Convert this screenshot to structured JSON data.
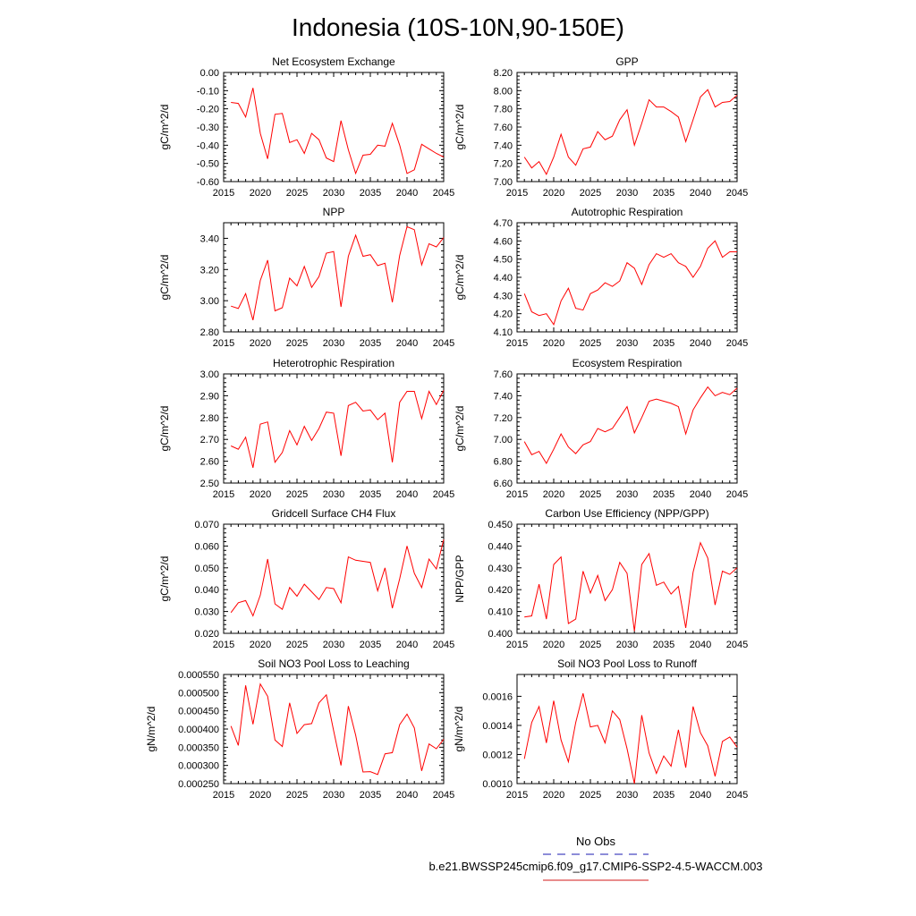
{
  "title": "Indonesia (10S-10N,90-150E)",
  "legend": {
    "obs_label": "No Obs",
    "obs_color": "#6666cc",
    "model_label": "b.e21.BWSSP245cmip6.f09_g17.CMIP6-SSP2-4.5-WACCM.003",
    "model_color": "#e06666"
  },
  "series_color": "#ff0000",
  "chart_data": [
    {
      "type": "line",
      "title": "Net Ecosystem Exchange",
      "ylabel": "gC/m^2/d",
      "xlim": [
        2015,
        2045
      ],
      "ylim": [
        -0.6,
        0.0
      ],
      "xticks": [
        2015,
        2020,
        2025,
        2030,
        2035,
        2040,
        2045
      ],
      "yticks": [
        -0.6,
        -0.5,
        -0.4,
        -0.3,
        -0.2,
        -0.1,
        0.0
      ],
      "ytick_labels": [
        "-0.60",
        "-0.50",
        "-0.40",
        "-0.30",
        "-0.20",
        "-0.10",
        "0.00"
      ],
      "x": [
        2016,
        2017,
        2018,
        2019,
        2020,
        2021,
        2022,
        2023,
        2024,
        2025,
        2026,
        2027,
        2028,
        2029,
        2030,
        2031,
        2032,
        2033,
        2034,
        2035,
        2036,
        2037,
        2038,
        2039,
        2040,
        2041,
        2042,
        2043,
        2044,
        2045
      ],
      "values": [
        -0.165,
        -0.17,
        -0.245,
        -0.085,
        -0.335,
        -0.475,
        -0.23,
        -0.225,
        -0.385,
        -0.37,
        -0.445,
        -0.335,
        -0.37,
        -0.47,
        -0.49,
        -0.265,
        -0.425,
        -0.555,
        -0.455,
        -0.45,
        -0.4,
        -0.405,
        -0.28,
        -0.4,
        -0.555,
        -0.535,
        -0.395,
        -0.42,
        -0.445,
        -0.465
      ]
    },
    {
      "type": "line",
      "title": "GPP",
      "ylabel": "gC/m^2/d",
      "xlim": [
        2015,
        2045
      ],
      "ylim": [
        7.0,
        8.2
      ],
      "xticks": [
        2015,
        2020,
        2025,
        2030,
        2035,
        2040,
        2045
      ],
      "yticks": [
        7.0,
        7.2,
        7.4,
        7.6,
        7.8,
        8.0,
        8.2
      ],
      "ytick_labels": [
        "7.00",
        "7.20",
        "7.40",
        "7.60",
        "7.80",
        "8.00",
        "8.20"
      ],
      "x": [
        2016,
        2017,
        2018,
        2019,
        2020,
        2021,
        2022,
        2023,
        2024,
        2025,
        2026,
        2027,
        2028,
        2029,
        2030,
        2031,
        2032,
        2033,
        2034,
        2035,
        2036,
        2037,
        2038,
        2039,
        2040,
        2041,
        2042,
        2043,
        2044,
        2045
      ],
      "values": [
        7.27,
        7.15,
        7.22,
        7.08,
        7.27,
        7.52,
        7.27,
        7.18,
        7.36,
        7.38,
        7.55,
        7.46,
        7.5,
        7.68,
        7.79,
        7.4,
        7.64,
        7.9,
        7.82,
        7.82,
        7.77,
        7.71,
        7.44,
        7.68,
        7.93,
        8.01,
        7.82,
        7.87,
        7.88,
        7.95
      ]
    },
    {
      "type": "line",
      "title": "NPP",
      "ylabel": "gC/m^2/d",
      "xlim": [
        2015,
        2045
      ],
      "ylim": [
        2.8,
        3.5
      ],
      "xticks": [
        2015,
        2020,
        2025,
        2030,
        2035,
        2040,
        2045
      ],
      "yticks": [
        2.8,
        3.0,
        3.2,
        3.4
      ],
      "ytick_labels": [
        "2.80",
        "3.00",
        "3.20",
        "3.40"
      ],
      "x": [
        2016,
        2017,
        2018,
        2019,
        2020,
        2021,
        2022,
        2023,
        2024,
        2025,
        2026,
        2027,
        2028,
        2029,
        2030,
        2031,
        2032,
        2033,
        2034,
        2035,
        2036,
        2037,
        2038,
        2039,
        2040,
        2041,
        2042,
        2043,
        2044,
        2045
      ],
      "values": [
        2.965,
        2.95,
        3.045,
        2.875,
        3.13,
        3.26,
        2.935,
        2.955,
        3.145,
        3.095,
        3.22,
        3.085,
        3.155,
        3.305,
        3.315,
        2.96,
        3.285,
        3.42,
        3.285,
        3.295,
        3.225,
        3.24,
        2.99,
        3.29,
        3.475,
        3.455,
        3.23,
        3.365,
        3.345,
        3.405
      ]
    },
    {
      "type": "line",
      "title": "Autotrophic Respiration",
      "ylabel": "gC/m^2/d",
      "xlim": [
        2015,
        2045
      ],
      "ylim": [
        4.1,
        4.7
      ],
      "xticks": [
        2015,
        2020,
        2025,
        2030,
        2035,
        2040,
        2045
      ],
      "yticks": [
        4.1,
        4.2,
        4.3,
        4.4,
        4.5,
        4.6,
        4.7
      ],
      "ytick_labels": [
        "4.10",
        "4.20",
        "4.30",
        "4.40",
        "4.50",
        "4.60",
        "4.70"
      ],
      "x": [
        2016,
        2017,
        2018,
        2019,
        2020,
        2021,
        2022,
        2023,
        2024,
        2025,
        2026,
        2027,
        2028,
        2029,
        2030,
        2031,
        2032,
        2033,
        2034,
        2035,
        2036,
        2037,
        2038,
        2039,
        2040,
        2041,
        2042,
        2043,
        2044,
        2045
      ],
      "values": [
        4.31,
        4.21,
        4.19,
        4.2,
        4.14,
        4.27,
        4.34,
        4.23,
        4.22,
        4.31,
        4.33,
        4.37,
        4.35,
        4.38,
        4.48,
        4.45,
        4.36,
        4.47,
        4.53,
        4.51,
        4.53,
        4.48,
        4.46,
        4.4,
        4.46,
        4.56,
        4.6,
        4.51,
        4.54,
        4.54
      ]
    },
    {
      "type": "line",
      "title": "Heterotrophic Respiration",
      "ylabel": "gC/m^2/d",
      "xlim": [
        2015,
        2045
      ],
      "ylim": [
        2.5,
        3.0
      ],
      "xticks": [
        2015,
        2020,
        2025,
        2030,
        2035,
        2040,
        2045
      ],
      "yticks": [
        2.5,
        2.6,
        2.7,
        2.8,
        2.9,
        3.0
      ],
      "ytick_labels": [
        "2.50",
        "2.60",
        "2.70",
        "2.80",
        "2.90",
        "3.00"
      ],
      "x": [
        2016,
        2017,
        2018,
        2019,
        2020,
        2021,
        2022,
        2023,
        2024,
        2025,
        2026,
        2027,
        2028,
        2029,
        2030,
        2031,
        2032,
        2033,
        2034,
        2035,
        2036,
        2037,
        2038,
        2039,
        2040,
        2041,
        2042,
        2043,
        2044,
        2045
      ],
      "values": [
        2.67,
        2.655,
        2.71,
        2.57,
        2.77,
        2.78,
        2.595,
        2.64,
        2.74,
        2.675,
        2.76,
        2.695,
        2.75,
        2.825,
        2.82,
        2.625,
        2.855,
        2.87,
        2.83,
        2.835,
        2.79,
        2.82,
        2.595,
        2.87,
        2.92,
        2.92,
        2.795,
        2.92,
        2.86,
        2.925
      ]
    },
    {
      "type": "line",
      "title": "Ecosystem Respiration",
      "ylabel": "gC/m^2/d",
      "xlim": [
        2015,
        2045
      ],
      "ylim": [
        6.6,
        7.6
      ],
      "xticks": [
        2015,
        2020,
        2025,
        2030,
        2035,
        2040,
        2045
      ],
      "yticks": [
        6.6,
        6.8,
        7.0,
        7.2,
        7.4,
        7.6
      ],
      "ytick_labels": [
        "6.60",
        "6.80",
        "7.00",
        "7.20",
        "7.40",
        "7.60"
      ],
      "x": [
        2016,
        2017,
        2018,
        2019,
        2020,
        2021,
        2022,
        2023,
        2024,
        2025,
        2026,
        2027,
        2028,
        2029,
        2030,
        2031,
        2032,
        2033,
        2034,
        2035,
        2036,
        2037,
        2038,
        2039,
        2040,
        2041,
        2042,
        2043,
        2044,
        2045
      ],
      "values": [
        6.98,
        6.86,
        6.89,
        6.78,
        6.91,
        7.05,
        6.93,
        6.87,
        6.95,
        6.98,
        7.1,
        7.07,
        7.1,
        7.2,
        7.3,
        7.06,
        7.2,
        7.35,
        7.37,
        7.35,
        7.33,
        7.3,
        7.05,
        7.27,
        7.38,
        7.48,
        7.4,
        7.43,
        7.41,
        7.47
      ]
    },
    {
      "type": "line",
      "title": "Gridcell Surface CH4 Flux",
      "ylabel": "gC/m^2/d",
      "xlim": [
        2015,
        2045
      ],
      "ylim": [
        0.02,
        0.07
      ],
      "xticks": [
        2015,
        2020,
        2025,
        2030,
        2035,
        2040,
        2045
      ],
      "yticks": [
        0.02,
        0.03,
        0.04,
        0.05,
        0.06,
        0.07
      ],
      "ytick_labels": [
        "0.020",
        "0.030",
        "0.040",
        "0.050",
        "0.060",
        "0.070"
      ],
      "x": [
        2016,
        2017,
        2018,
        2019,
        2020,
        2021,
        2022,
        2023,
        2024,
        2025,
        2026,
        2027,
        2028,
        2029,
        2030,
        2031,
        2032,
        2033,
        2034,
        2035,
        2036,
        2037,
        2038,
        2039,
        2040,
        2041,
        2042,
        2043,
        2044,
        2045
      ],
      "values": [
        0.0295,
        0.034,
        0.035,
        0.028,
        0.0375,
        0.054,
        0.0335,
        0.031,
        0.041,
        0.037,
        0.0425,
        0.039,
        0.0355,
        0.041,
        0.0405,
        0.034,
        0.055,
        0.0535,
        0.053,
        0.0525,
        0.0395,
        0.05,
        0.0315,
        0.045,
        0.06,
        0.0475,
        0.041,
        0.054,
        0.0495,
        0.063
      ]
    },
    {
      "type": "line",
      "title": "Carbon Use Efficiency (NPP/GPP)",
      "ylabel": "NPP/GPP",
      "xlim": [
        2015,
        2045
      ],
      "ylim": [
        0.4,
        0.45
      ],
      "xticks": [
        2015,
        2020,
        2025,
        2030,
        2035,
        2040,
        2045
      ],
      "yticks": [
        0.4,
        0.41,
        0.42,
        0.43,
        0.44,
        0.45
      ],
      "ytick_labels": [
        "0.400",
        "0.410",
        "0.420",
        "0.430",
        "0.440",
        "0.450"
      ],
      "x": [
        2016,
        2017,
        2018,
        2019,
        2020,
        2021,
        2022,
        2023,
        2024,
        2025,
        2026,
        2027,
        2028,
        2029,
        2030,
        2031,
        2032,
        2033,
        2034,
        2035,
        2036,
        2037,
        2038,
        2039,
        2040,
        2041,
        2042,
        2043,
        2044,
        2045
      ],
      "values": [
        0.4075,
        0.408,
        0.4225,
        0.4065,
        0.4315,
        0.435,
        0.4045,
        0.4065,
        0.4285,
        0.4185,
        0.4265,
        0.415,
        0.42,
        0.4325,
        0.4275,
        0.401,
        0.4315,
        0.4365,
        0.422,
        0.4235,
        0.418,
        0.4215,
        0.4025,
        0.428,
        0.4415,
        0.4345,
        0.413,
        0.4285,
        0.427,
        0.43
      ]
    },
    {
      "type": "line",
      "title": "Soil NO3 Pool Loss to Leaching",
      "ylabel": "gN/m^2/d",
      "xlim": [
        2015,
        2045
      ],
      "ylim": [
        0.00025,
        0.00055
      ],
      "xticks": [
        2015,
        2020,
        2025,
        2030,
        2035,
        2040,
        2045
      ],
      "yticks": [
        0.00025,
        0.0003,
        0.00035,
        0.0004,
        0.00045,
        0.0005,
        0.00055
      ],
      "ytick_labels": [
        "0.000250",
        "0.000300",
        "0.000350",
        "0.000400",
        "0.000450",
        "0.000500",
        "0.000550"
      ],
      "x": [
        2016,
        2017,
        2018,
        2019,
        2020,
        2021,
        2022,
        2023,
        2024,
        2025,
        2026,
        2027,
        2028,
        2029,
        2030,
        2031,
        2032,
        2033,
        2034,
        2035,
        2036,
        2037,
        2038,
        2039,
        2040,
        2041,
        2042,
        2043,
        2044,
        2045
      ],
      "values": [
        0.000408,
        0.000355,
        0.00052,
        0.000413,
        0.000524,
        0.00049,
        0.00037,
        0.000352,
        0.000472,
        0.000388,
        0.000412,
        0.000415,
        0.000472,
        0.000494,
        0.000395,
        0.0003,
        0.000463,
        0.000383,
        0.000282,
        0.000283,
        0.000275,
        0.000332,
        0.000335,
        0.000412,
        0.000441,
        0.000403,
        0.000285,
        0.000359,
        0.000346,
        0.000372
      ]
    },
    {
      "type": "line",
      "title": "Soil NO3 Pool Loss to Runoff",
      "ylabel": "gN/m^2/d",
      "xlim": [
        2015,
        2045
      ],
      "ylim": [
        0.001,
        0.00175
      ],
      "xticks": [
        2015,
        2020,
        2025,
        2030,
        2035,
        2040,
        2045
      ],
      "yticks": [
        0.001,
        0.0012,
        0.0014,
        0.0016
      ],
      "ytick_labels": [
        "0.0010",
        "0.0012",
        "0.0014",
        "0.0016"
      ],
      "x": [
        2016,
        2017,
        2018,
        2019,
        2020,
        2021,
        2022,
        2023,
        2024,
        2025,
        2026,
        2027,
        2028,
        2029,
        2030,
        2031,
        2032,
        2033,
        2034,
        2035,
        2036,
        2037,
        2038,
        2039,
        2040,
        2041,
        2042,
        2043,
        2044,
        2045
      ],
      "values": [
        0.00117,
        0.00142,
        0.00153,
        0.00128,
        0.00157,
        0.0013,
        0.00115,
        0.00142,
        0.00162,
        0.00139,
        0.0014,
        0.00128,
        0.0015,
        0.00144,
        0.00124,
        0.001,
        0.00147,
        0.00121,
        0.00107,
        0.00119,
        0.00112,
        0.00137,
        0.00111,
        0.00153,
        0.00135,
        0.00126,
        0.00105,
        0.00129,
        0.00132,
        0.00125
      ]
    }
  ]
}
